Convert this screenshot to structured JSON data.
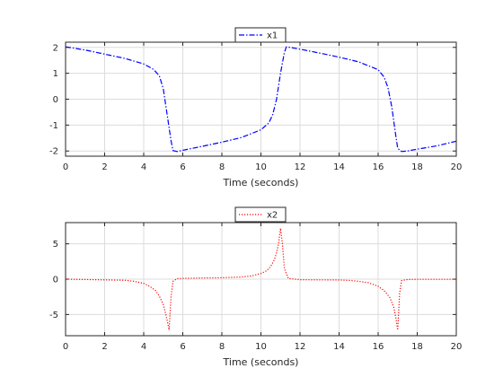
{
  "chart_data": [
    {
      "type": "line",
      "title": "",
      "xlabel": "Time (seconds)",
      "ylabel": "",
      "xlim": [
        0,
        20
      ],
      "ylim": [
        -2.2,
        2.2
      ],
      "xticks": [
        "0",
        "2",
        "4",
        "6",
        "8",
        "10",
        "12",
        "14",
        "16",
        "18",
        "20"
      ],
      "yticks": [
        "2",
        "1",
        "0",
        "-1",
        "-2"
      ],
      "grid": true,
      "legend": "top-center",
      "series": [
        {
          "name": "x1",
          "color": "#0000ff",
          "style": "dash-dot",
          "x": [
            0,
            1,
            2,
            3,
            4,
            4.5,
            4.8,
            5.0,
            5.2,
            5.4,
            5.5,
            5.7,
            6,
            7,
            8,
            9,
            10,
            10.4,
            10.6,
            10.8,
            11.0,
            11.2,
            11.3,
            11.5,
            12,
            13,
            14,
            15,
            16,
            16.3,
            16.5,
            16.7,
            16.9,
            17.0,
            17.2,
            17.5,
            18,
            19,
            20
          ],
          "y": [
            2.02,
            1.9,
            1.74,
            1.58,
            1.36,
            1.15,
            0.9,
            0.4,
            -0.6,
            -1.6,
            -1.98,
            -2.02,
            -1.97,
            -1.82,
            -1.66,
            -1.48,
            -1.18,
            -0.92,
            -0.6,
            0.0,
            1.0,
            1.8,
            2.02,
            2.0,
            1.93,
            1.78,
            1.62,
            1.44,
            1.14,
            0.86,
            0.45,
            -0.3,
            -1.4,
            -1.9,
            -2.02,
            -2.0,
            -1.93,
            -1.8,
            -1.62
          ]
        }
      ]
    },
    {
      "type": "line",
      "title": "",
      "xlabel": "Time (seconds)",
      "ylabel": "",
      "xlim": [
        0,
        20
      ],
      "ylim": [
        -8,
        8
      ],
      "xticks": [
        "0",
        "2",
        "4",
        "6",
        "8",
        "10",
        "12",
        "14",
        "16",
        "18",
        "20"
      ],
      "yticks": [
        "5",
        "0",
        "-5"
      ],
      "grid": true,
      "legend": "top-center",
      "series": [
        {
          "name": "x2",
          "color": "#ff0000",
          "style": "dotted",
          "x": [
            0,
            1,
            2,
            3,
            3.5,
            4,
            4.3,
            4.6,
            4.8,
            5.0,
            5.1,
            5.2,
            5.3,
            5.4,
            5.5,
            5.7,
            6,
            7,
            8,
            9,
            9.5,
            10,
            10.3,
            10.5,
            10.7,
            10.8,
            10.9,
            11.0,
            11.1,
            11.2,
            11.4,
            12,
            13,
            14,
            14.5,
            15,
            15.5,
            16,
            16.3,
            16.6,
            16.8,
            16.9,
            17.0,
            17.1,
            17.2,
            17.5,
            18,
            19,
            20
          ],
          "y": [
            0,
            -0.05,
            -0.1,
            -0.15,
            -0.3,
            -0.6,
            -1.0,
            -1.6,
            -2.4,
            -3.6,
            -4.6,
            -5.8,
            -7.2,
            -2.5,
            -0.3,
            0.08,
            0.12,
            0.16,
            0.2,
            0.3,
            0.45,
            0.8,
            1.2,
            1.8,
            2.8,
            3.8,
            5.0,
            7.2,
            5.0,
            1.5,
            0.1,
            -0.08,
            -0.1,
            -0.12,
            -0.18,
            -0.3,
            -0.5,
            -1.0,
            -1.6,
            -2.6,
            -4.0,
            -5.4,
            -7.2,
            -2.0,
            -0.2,
            -0.05,
            -0.02,
            -0.02,
            -0.02
          ]
        }
      ]
    }
  ]
}
